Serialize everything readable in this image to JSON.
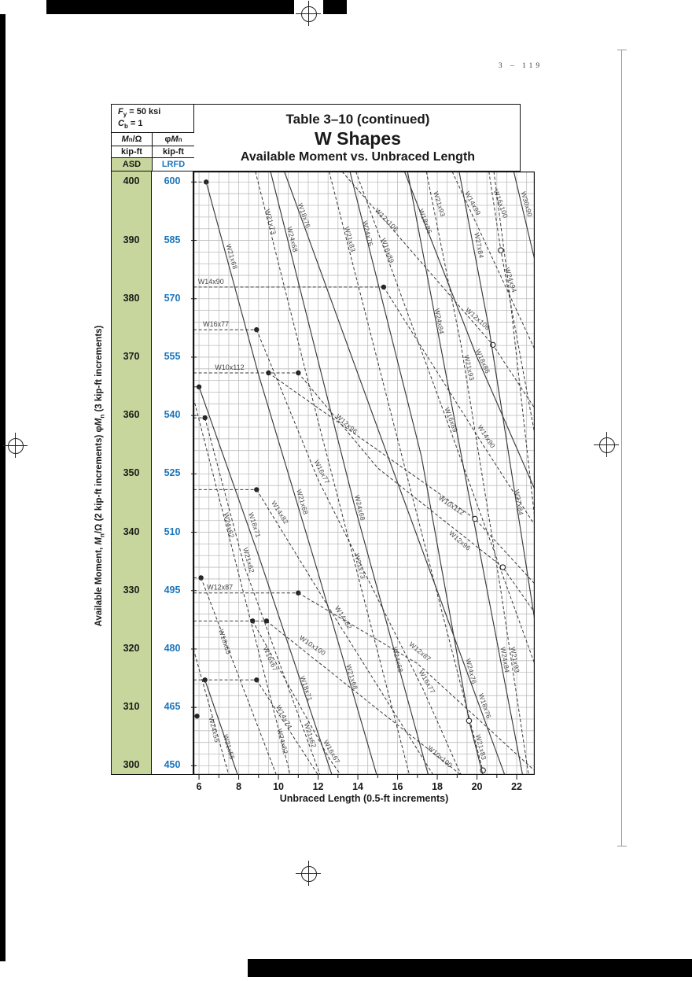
{
  "page": {
    "number": "3 – 119"
  },
  "header": {
    "fy": {
      "sym": "F",
      "sub": "y",
      "rest": "= 50 ksi"
    },
    "cb": {
      "sym": "C",
      "sub": "b",
      "rest": "= 1"
    },
    "asd_m": {
      "p1": "M",
      "p2": "n",
      "p3": "/Ω"
    },
    "lrfd_m": {
      "p1": "φ",
      "p2": "M",
      "p3": "n"
    },
    "unit_asd": "kip-ft",
    "unit_lrfd": "kip-ft",
    "asd": "ASD",
    "lrfd": "LRFD",
    "title1": "Table 3–10 (continued)",
    "title2": "W Shapes",
    "title3": "Available Moment vs. Unbraced Length"
  },
  "yaxis": {
    "p1": "Available Moment, ",
    "p2": "M",
    "p3": "n",
    "p4": "/Ω  (2 kip-ft increments)  ",
    "p5": "φ",
    "p6": "M",
    "p7": "n",
    "p8": " (3 kip-ft increments)"
  },
  "xaxis": {
    "title": "Unbraced Length (0.5-ft increments)"
  },
  "colors": {
    "asd_green": "#c6d69c",
    "lrfd_blue": "#1b75bb",
    "grid": "#bdbdbd",
    "curve": "#3a3a3a"
  },
  "chart_data": {
    "type": "line",
    "title": "Available Moment vs. Unbraced Length",
    "xlabel": "Unbraced Length (0.5-ft increments)",
    "x_unit": "ft",
    "y_unit": "kip-ft",
    "x_domain": [
      5.72,
      22.95
    ],
    "y_domain_asd": [
      298.4,
      401.8
    ],
    "x_minor_step": 0.5,
    "y_minor_step": 2,
    "x_ticks": [
      6,
      8,
      10,
      12,
      14,
      16,
      18,
      20,
      22
    ],
    "y_ticks_asd": [
      400,
      390,
      380,
      370,
      360,
      350,
      340,
      330,
      320,
      310,
      300
    ],
    "y_ticks_lrfd": [
      600,
      585,
      570,
      555,
      540,
      525,
      510,
      495,
      480,
      465,
      450
    ],
    "legend": {
      "solid": "curve",
      "dashed": "curve (dashed)",
      "filled_dot": "Lp marker",
      "open_circle": "Lr marker"
    },
    "plateaus": [
      {
        "m": 400.0,
        "to": 6.36,
        "dots": [
          6.36
        ]
      },
      {
        "m": 382.0,
        "to": 15.3,
        "dots": [
          15.3
        ],
        "label": "W14x90",
        "label_x": 5.95
      },
      {
        "m": 374.7,
        "to": 8.9,
        "dots": [
          8.9
        ],
        "label": "W16x77",
        "label_x": 6.2
      },
      {
        "m": 367.3,
        "to": 11.0,
        "dots": [
          9.5,
          11.0
        ],
        "label": "W10x112",
        "label_x": 6.8
      },
      {
        "m": 364.9,
        "to": 6.0,
        "dots": [
          6.0
        ]
      },
      {
        "m": 359.6,
        "to": 6.3,
        "dots": [
          6.3
        ]
      },
      {
        "m": 347.3,
        "to": 8.9,
        "dots": [
          8.9
        ]
      },
      {
        "m": 332.2,
        "to": 6.1,
        "dots": [
          6.1
        ]
      },
      {
        "m": 329.6,
        "to": 11.0,
        "dots": [
          11.0
        ],
        "label": "W12x87",
        "label_x": 6.4
      },
      {
        "m": 324.8,
        "to": 9.4,
        "dots": [
          8.7,
          9.4
        ]
      },
      {
        "m": 314.7,
        "to": 8.9,
        "dots": [
          6.3,
          8.9
        ]
      },
      {
        "m": 308.5,
        "to": 5.9,
        "dots": [
          5.9
        ]
      }
    ],
    "series": [
      {
        "name": "W21x68",
        "style": "solid",
        "pts": [
          [
            6.36,
            400
          ],
          [
            9.0,
            367
          ],
          [
            12.0,
            333
          ],
          [
            14.95,
            298.4
          ]
        ],
        "labels": [
          [
            7.45,
            387,
            74
          ],
          [
            11.0,
            345,
            74
          ],
          [
            13.5,
            315,
            74
          ]
        ]
      },
      {
        "name": "W21x73",
        "style": "dashed",
        "pts": [
          [
            8.84,
            401.8
          ],
          [
            12.0,
            359
          ],
          [
            16.6,
            298.4
          ]
        ],
        "labels": [
          [
            9.4,
            393,
            75
          ],
          [
            13.9,
            334,
            75
          ]
        ]
      },
      {
        "name": "W24x68",
        "style": "solid",
        "pts": [
          [
            9.6,
            401.8
          ],
          [
            13.8,
            345
          ],
          [
            17.55,
            298.4
          ]
        ],
        "labels": [
          [
            10.5,
            390,
            76
          ],
          [
            13.9,
            344,
            76
          ],
          [
            15.8,
            318,
            76
          ]
        ]
      },
      {
        "name": "W18x76",
        "style": "solid",
        "pts": [
          [
            10.3,
            401.8
          ],
          [
            15.3,
            355
          ],
          [
            21.4,
            298.4
          ]
        ],
        "labels": [
          [
            11.1,
            394,
            71
          ],
          [
            20.2,
            310,
            71
          ]
        ]
      },
      {
        "name": "W21x83",
        "style": "dashed",
        "pts": [
          [
            12.55,
            401.8
          ],
          [
            16.3,
            352
          ],
          [
            20.35,
            298.4
          ]
        ],
        "labels": [
          [
            13.4,
            390,
            75
          ],
          [
            20.0,
            303,
            76
          ]
        ],
        "circles": [
          [
            20.3,
            299.2
          ]
        ]
      },
      {
        "name": "W24x76",
        "style": "solid",
        "pts": [
          [
            13.6,
            401.8
          ],
          [
            17.2,
            353
          ],
          [
            19.6,
            307.7
          ],
          [
            20.3,
            298.4
          ]
        ],
        "labels": [
          [
            14.3,
            391,
            76
          ],
          [
            19.5,
            316,
            76
          ]
        ],
        "circles": [
          [
            19.6,
            307.7
          ]
        ]
      },
      {
        "name": "W18x86",
        "style": "solid",
        "pts": [
          [
            16.35,
            401.8
          ],
          [
            20.0,
            370
          ],
          [
            22.95,
            347
          ]
        ],
        "labels": [
          [
            17.2,
            393,
            69
          ],
          [
            20.1,
            369,
            66
          ]
        ]
      },
      {
        "name": "W21x93",
        "style": "dashed",
        "pts": [
          [
            17.45,
            401.8
          ],
          [
            19.2,
            372
          ],
          [
            21.2,
            330
          ],
          [
            22.6,
            298.4
          ]
        ],
        "labels": [
          [
            17.9,
            396,
            73
          ],
          [
            19.4,
            368,
            77
          ],
          [
            21.7,
            318,
            80
          ]
        ]
      },
      {
        "name": "W12x106",
        "style": "dashed",
        "pts": [
          [
            13.2,
            401.8
          ],
          [
            17.0,
            387
          ],
          [
            20.8,
            372.1
          ],
          [
            22.95,
            361
          ]
        ],
        "labels": [
          [
            15.3,
            393,
            45
          ],
          [
            19.9,
            376,
            42
          ]
        ],
        "circles": [
          [
            20.8,
            372.1
          ]
        ]
      },
      {
        "name": "W16x89",
        "style": "dashed",
        "pts": [
          [
            13.9,
            401.8
          ],
          [
            18.5,
            359
          ],
          [
            22.95,
            317
          ]
        ],
        "labels": [
          [
            15.3,
            388,
            70
          ],
          [
            18.5,
            359,
            70
          ]
        ]
      },
      {
        "name": "W14x99",
        "style": "dashed",
        "pts": [
          [
            18.75,
            401.8
          ],
          [
            22.95,
            371
          ]
        ],
        "labels": [
          [
            19.6,
            396,
            62
          ]
        ]
      },
      {
        "name": "W16x100",
        "style": "dashed",
        "pts": [
          [
            20.6,
            401.8
          ],
          [
            21.2,
            388.3
          ],
          [
            22.95,
            356
          ]
        ],
        "labels": [
          [
            21.0,
            396,
            70
          ]
        ],
        "circles": [
          [
            21.2,
            388.3
          ]
        ]
      },
      {
        "name": "W30x90",
        "style": "solid",
        "pts": [
          [
            21.85,
            401.8
          ],
          [
            22.95,
            386
          ]
        ],
        "labels": [
          [
            22.3,
            396,
            74
          ]
        ]
      },
      {
        "name": "W27x84",
        "style": "solid",
        "pts": [
          [
            19.1,
            401.8
          ],
          [
            20.6,
            375
          ],
          [
            22.95,
            324
          ]
        ],
        "labels": [
          [
            19.9,
            389,
            79
          ],
          [
            21.9,
            345,
            80
          ]
        ]
      },
      {
        "name": "W24x94",
        "style": "dashed",
        "pts": [
          [
            20.85,
            401.8
          ],
          [
            21.6,
            382
          ],
          [
            22.95,
            341
          ]
        ],
        "labels": [
          [
            21.5,
            383,
            73
          ]
        ]
      },
      {
        "name": "W24x84",
        "style": "solid",
        "pts": [
          [
            16.5,
            401.8
          ],
          [
            19.5,
            348
          ],
          [
            22.3,
            298.4
          ]
        ],
        "labels": [
          [
            17.9,
            376,
            79
          ],
          [
            21.2,
            318,
            80
          ]
        ]
      },
      {
        "name": "W14x90",
        "style": "dashed",
        "pts": [
          [
            15.3,
            382
          ],
          [
            20.3,
            355
          ],
          [
            22.95,
            341
          ]
        ],
        "labels": [
          [
            20.3,
            356,
            57
          ]
        ]
      },
      {
        "name": "W10x112",
        "style": "dashed",
        "pts": [
          [
            9.5,
            367.3
          ],
          [
            19.9,
            342.3
          ],
          [
            22.95,
            331
          ]
        ],
        "labels": [
          [
            18.6,
            344,
            34
          ]
        ],
        "circles": [
          [
            19.9,
            342.3
          ]
        ]
      },
      {
        "name": "W12x96",
        "style": "dashed",
        "pts": [
          [
            11.0,
            367.3
          ],
          [
            15.0,
            351
          ],
          [
            21.3,
            334
          ],
          [
            22.95,
            326
          ]
        ],
        "labels": [
          [
            13.3,
            358,
            41
          ],
          [
            19.0,
            338,
            41
          ]
        ],
        "circles": [
          [
            21.3,
            334
          ]
        ]
      },
      {
        "name": "W16x77",
        "style": "dashed",
        "pts": [
          [
            8.9,
            374.7
          ],
          [
            12.0,
            349
          ],
          [
            17.3,
            313
          ],
          [
            19.2,
            298.4
          ]
        ],
        "labels": [
          [
            12.0,
            350,
            63
          ],
          [
            17.3,
            314,
            60
          ]
        ]
      },
      {
        "name": "W18x71",
        "style": "solid",
        "pts": [
          [
            6.0,
            364.9
          ],
          [
            9.0,
            336
          ],
          [
            12.7,
            298.4
          ]
        ],
        "labels": [
          [
            8.6,
            341,
            72
          ],
          [
            11.2,
            313,
            72
          ]
        ]
      },
      {
        "name": "W21x62",
        "style": "dashed",
        "pts": [
          [
            6.3,
            359.6
          ],
          [
            8.3,
            334
          ],
          [
            12.1,
            298.4
          ]
        ],
        "labels": [
          [
            8.3,
            335,
            74
          ],
          [
            11.4,
            305,
            72
          ]
        ]
      },
      {
        "name": "W14x82",
        "style": "dashed",
        "pts": [
          [
            8.9,
            347.3
          ],
          [
            13.1,
            324
          ],
          [
            17.8,
            298.4
          ]
        ],
        "labels": [
          [
            9.9,
            343,
            58
          ],
          [
            13.1,
            325,
            58
          ]
        ]
      },
      {
        "name": "W12x87",
        "style": "dashed",
        "pts": [
          [
            11.0,
            329.6
          ],
          [
            17.0,
            317.5
          ],
          [
            22.95,
            299
          ]
        ],
        "labels": [
          [
            17.0,
            319,
            40
          ]
        ]
      },
      {
        "name": "W16x67",
        "style": "dashed",
        "pts": [
          [
            8.7,
            324.8
          ],
          [
            12.6,
            301
          ],
          [
            13.15,
            298.4
          ]
        ],
        "labels": [
          [
            9.4,
            318,
            66
          ],
          [
            12.5,
            302,
            60
          ]
        ]
      },
      {
        "name": "W10x100",
        "style": "dashed",
        "pts": [
          [
            9.4,
            324.8
          ],
          [
            14.5,
            311
          ],
          [
            19.2,
            298.4
          ]
        ],
        "labels": [
          [
            11.6,
            320,
            34
          ],
          [
            18.0,
            301,
            40
          ]
        ]
      },
      {
        "name": "W18x65",
        "style": "dashed",
        "pts": [
          [
            6.1,
            332.2
          ],
          [
            9.9,
            298.4
          ]
        ],
        "labels": [
          [
            7.1,
            321,
            72
          ]
        ]
      },
      {
        "name": "W21x55",
        "style": "solid",
        "pts": [
          [
            6.3,
            314.7
          ],
          [
            7.95,
            298.4
          ]
        ],
        "labels": [
          [
            7.3,
            303,
            74
          ]
        ]
      },
      {
        "name": "W14x74",
        "style": "dashed",
        "pts": [
          [
            8.9,
            314.7
          ],
          [
            12.0,
            298.4
          ]
        ],
        "labels": [
          [
            10.1,
            308,
            62
          ]
        ]
      },
      {
        "name": "W24x55",
        "style": "dashed",
        "pts": [
          [
            5.72,
            320
          ],
          [
            7.5,
            298.4
          ]
        ],
        "labels": [
          [
            6.55,
            306,
            76
          ]
        ]
      },
      {
        "name": "W24x62",
        "style": "dashed",
        "pts": [
          [
            5.72,
            363
          ],
          [
            10.6,
            298.4
          ]
        ],
        "labels": [
          [
            7.3,
            341,
            76
          ],
          [
            10.0,
            304,
            76
          ]
        ]
      }
    ]
  }
}
